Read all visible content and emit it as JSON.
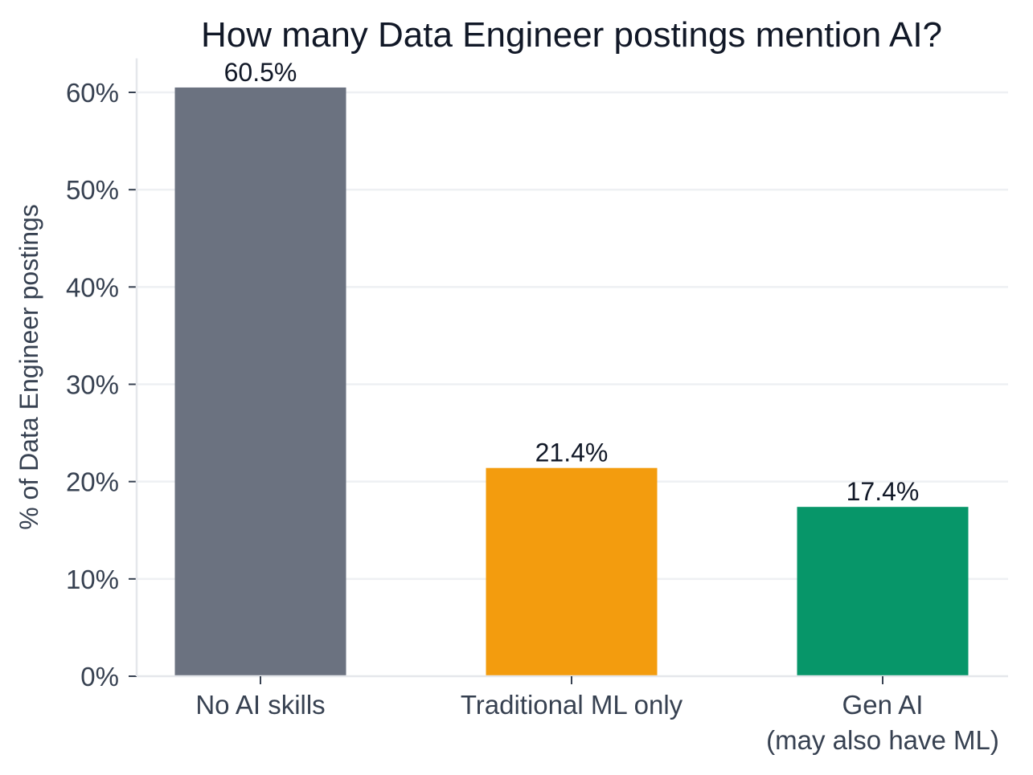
{
  "chart_data": {
    "type": "bar",
    "title": "How many Data Engineer postings mention AI?",
    "xlabel": "",
    "ylabel": "% of Data Engineer postings",
    "categories": [
      [
        "No AI skills"
      ],
      [
        "Traditional ML only"
      ],
      [
        "Gen AI",
        "(may also have ML)"
      ]
    ],
    "values": [
      60.5,
      21.4,
      17.4
    ],
    "value_labels": [
      "60.5%",
      "21.4%",
      "17.4%"
    ],
    "colors": [
      "#6b7280",
      "#f39c0e",
      "#079669"
    ],
    "ylim": [
      0,
      63.5
    ],
    "yticks": [
      0,
      10,
      20,
      30,
      40,
      50,
      60
    ],
    "ytick_labels": [
      "0%",
      "10%",
      "20%",
      "30%",
      "40%",
      "50%",
      "60%"
    ],
    "grid": "horizontal",
    "legend": "none"
  }
}
